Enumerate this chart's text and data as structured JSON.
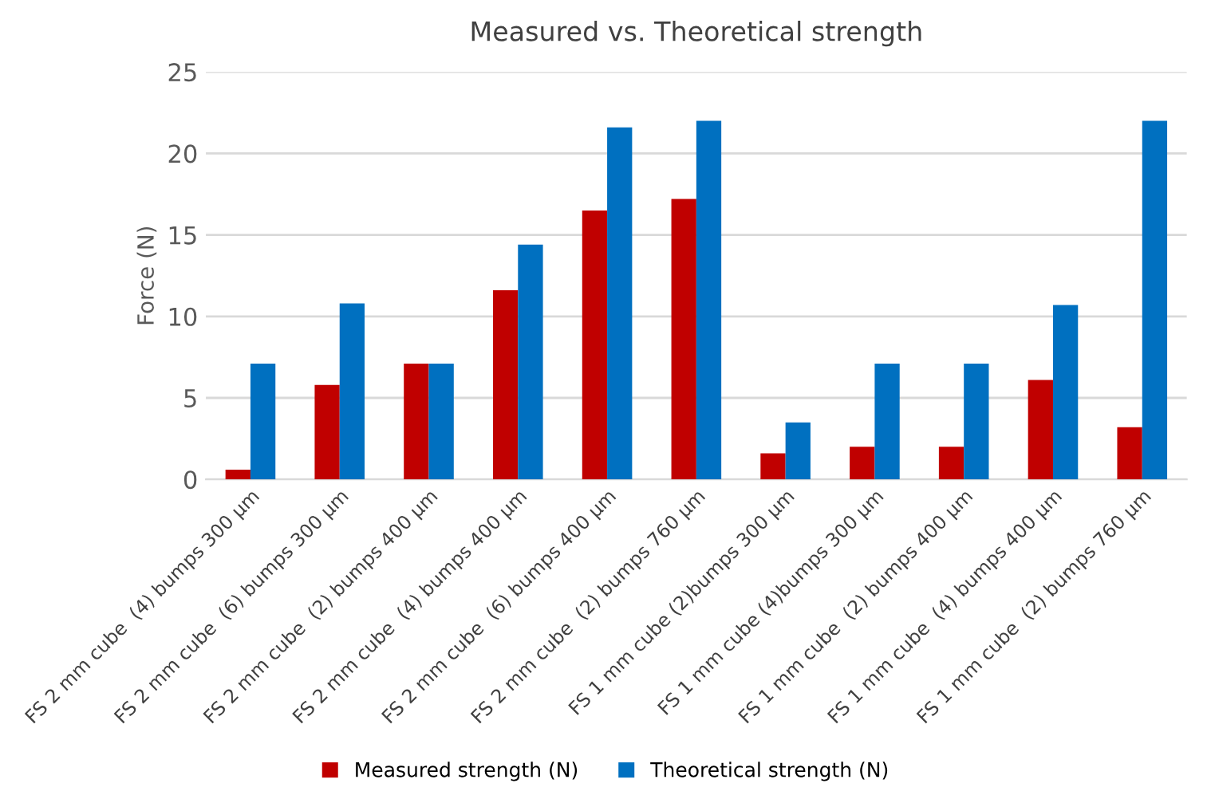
{
  "chart_data": {
    "type": "bar",
    "title": "Measured vs. Theoretical strength",
    "ylabel": "Force (N)",
    "categories": [
      "FS 2 mm cube  (4) bumps 300 µm",
      "FS 2 mm cube  (6) bumps 300 µm",
      "FS 2 mm cube  (2) bumps 400 µm",
      "FS 2 mm cube  (4) bumps 400 µm",
      "FS 2 mm cube  (6) bumps 400 µm",
      "FS 2 mm cube  (2) bumps 760 µm",
      "FS 1 mm cube (2)bumps 300 µm",
      "FS 1 mm cube (4)bumps 300 µm",
      "FS 1 mm cube  (2) bumps 400 µm",
      "FS 1 mm cube  (4) bumps 400 µm",
      "FS 1 mm cube  (2) bumps 760 µm"
    ],
    "series": [
      {
        "name": "Measured strength (N)",
        "color": "#c00000",
        "values": [
          0.6,
          5.8,
          7.1,
          11.6,
          16.5,
          17.2,
          1.6,
          2.0,
          2.0,
          6.1,
          3.2
        ]
      },
      {
        "name": "Theoretical strength (N)",
        "color": "#0070c0",
        "values": [
          7.1,
          10.8,
          7.1,
          14.4,
          21.6,
          22.0,
          3.5,
          7.1,
          7.1,
          10.7,
          22.0
        ]
      }
    ],
    "ylim": [
      0,
      25
    ],
    "yticks": [
      0,
      5,
      10,
      15,
      20,
      25
    ],
    "grid": "y",
    "legend": "bottom"
  }
}
